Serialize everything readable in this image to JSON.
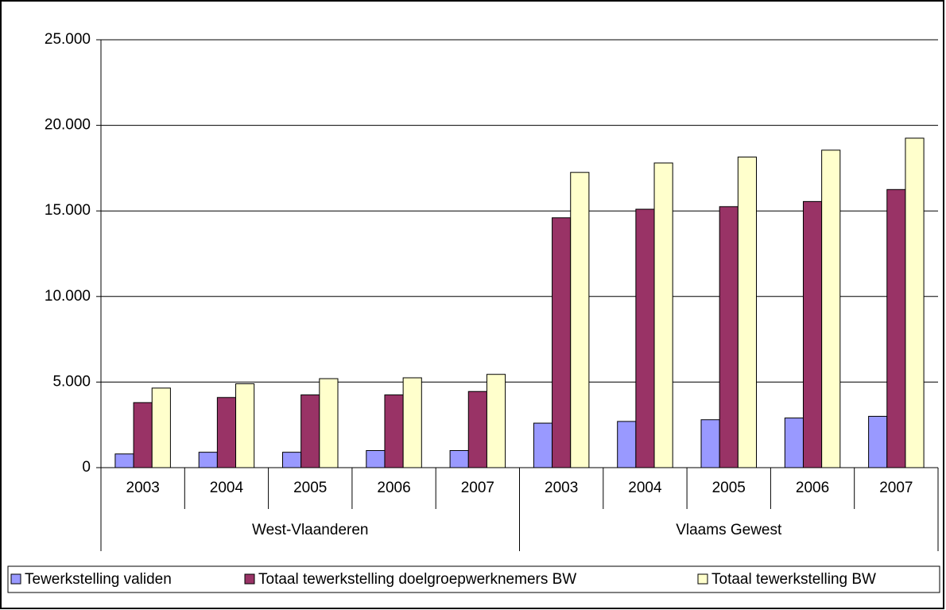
{
  "chart_data": {
    "type": "bar",
    "groups": [
      {
        "name": "West-Vlaanderen",
        "categories": [
          "2003",
          "2004",
          "2005",
          "2006",
          "2007"
        ]
      },
      {
        "name": "Vlaams Gewest",
        "categories": [
          "2003",
          "2004",
          "2005",
          "2006",
          "2007"
        ]
      }
    ],
    "series": [
      {
        "name": "Tewerkstelling validen",
        "color": "#9999ff",
        "values": [
          800,
          900,
          900,
          1000,
          1000,
          2600,
          2700,
          2800,
          2900,
          3000
        ]
      },
      {
        "name": "Totaal tewerkstelling doelgroepwerknemers BW",
        "color": "#993366",
        "values": [
          3800,
          4100,
          4250,
          4250,
          4450,
          14600,
          15100,
          15250,
          15550,
          16250
        ]
      },
      {
        "name": "Totaal tewerkstelling BW",
        "color": "#ffffcc",
        "values": [
          4650,
          4900,
          5200,
          5250,
          5450,
          17250,
          17800,
          18150,
          18550,
          19250
        ]
      }
    ],
    "ylim": [
      0,
      25000
    ],
    "yticks": [
      0,
      {
        "value": 5000,
        "label": "5.000"
      },
      {
        "value": 10000,
        "label": "10.000"
      },
      {
        "value": 15000,
        "label": "15.000"
      },
      {
        "value": 20000,
        "label": "20.000"
      },
      {
        "value": 25000,
        "label": "25.000"
      }
    ],
    "grid": true,
    "legend": "bottom"
  }
}
